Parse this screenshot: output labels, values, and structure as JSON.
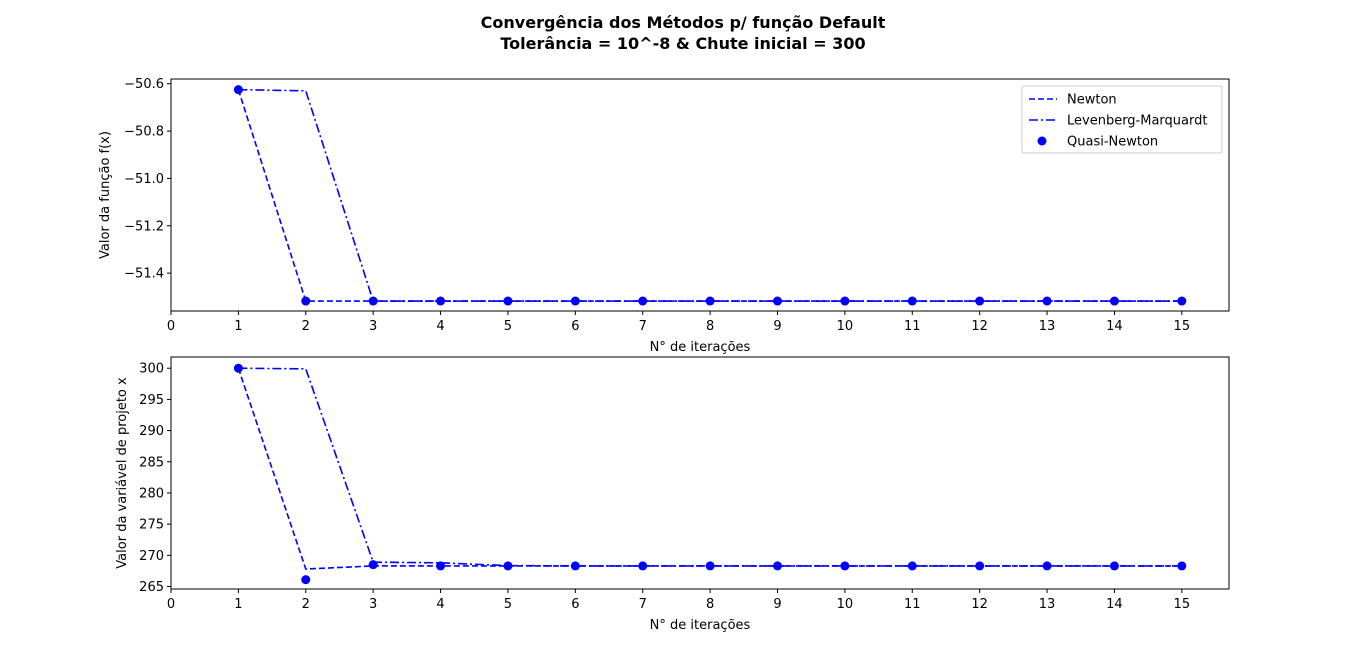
{
  "figure": {
    "title_line1": "Convergência dos Métodos p/ função Default",
    "title_line2": "Tolerância = 10^-8 & Chute inicial = 300"
  },
  "colors": {
    "series": "#0000ff",
    "axes": "#000000",
    "background": "#ffffff"
  },
  "chart_data": [
    {
      "type": "line",
      "xlabel": "N° de iterações",
      "ylabel": "Valor da função f(x)",
      "xlim": [
        0,
        15.7
      ],
      "ylim": [
        -51.56,
        -50.58
      ],
      "xticks": [
        0,
        1,
        2,
        3,
        4,
        5,
        6,
        7,
        8,
        9,
        10,
        11,
        12,
        13,
        14,
        15
      ],
      "xtick_labels": [
        "0",
        "1",
        "2",
        "3",
        "4",
        "5",
        "6",
        "7",
        "8",
        "9",
        "10",
        "11",
        "12",
        "13",
        "14",
        "15"
      ],
      "yticks": [
        -51.4,
        -51.2,
        -51.0,
        -50.8,
        -50.6
      ],
      "ytick_labels": [
        "−51.4",
        "−51.2",
        "−51.0",
        "−50.8",
        "−50.6"
      ],
      "grid": false,
      "legend_position": "top-right",
      "series": [
        {
          "name": "Newton",
          "style": "dashed",
          "x": [
            1,
            2,
            3,
            4,
            5,
            6,
            7,
            8,
            9,
            10,
            11,
            12,
            13,
            14,
            15
          ],
          "y": [
            -50.625,
            -51.518,
            -51.518,
            -51.518,
            -51.518,
            -51.518,
            -51.518,
            -51.518,
            -51.518,
            -51.518,
            -51.518,
            -51.518,
            -51.518,
            -51.518,
            -51.518
          ]
        },
        {
          "name": "Levenberg-Marquardt",
          "style": "dashdot",
          "x": [
            1,
            2,
            3,
            4,
            5,
            6,
            7,
            8,
            9,
            10,
            11,
            12,
            13,
            14,
            15
          ],
          "y": [
            -50.625,
            -50.63,
            -51.518,
            -51.518,
            -51.518,
            -51.518,
            -51.518,
            -51.518,
            -51.518,
            -51.518,
            -51.518,
            -51.518,
            -51.518,
            -51.518,
            -51.518
          ]
        },
        {
          "name": "Quasi-Newton",
          "style": "markers",
          "x": [
            1,
            2,
            3,
            4,
            5,
            6,
            7,
            8,
            9,
            10,
            11,
            12,
            13,
            14,
            15
          ],
          "y": [
            -50.625,
            -51.518,
            -51.518,
            -51.518,
            -51.518,
            -51.518,
            -51.518,
            -51.518,
            -51.518,
            -51.518,
            -51.518,
            -51.518,
            -51.518,
            -51.518,
            -51.518
          ]
        }
      ]
    },
    {
      "type": "line",
      "xlabel": "N° de iterações",
      "ylabel": "Valor da variável de projeto x",
      "xlim": [
        0,
        15.7
      ],
      "ylim": [
        264.6,
        301.8
      ],
      "xticks": [
        0,
        1,
        2,
        3,
        4,
        5,
        6,
        7,
        8,
        9,
        10,
        11,
        12,
        13,
        14,
        15
      ],
      "xtick_labels": [
        "0",
        "1",
        "2",
        "3",
        "4",
        "5",
        "6",
        "7",
        "8",
        "9",
        "10",
        "11",
        "12",
        "13",
        "14",
        "15"
      ],
      "yticks": [
        265,
        270,
        275,
        280,
        285,
        290,
        295,
        300
      ],
      "ytick_labels": [
        "265",
        "270",
        "275",
        "280",
        "285",
        "290",
        "295",
        "300"
      ],
      "grid": false,
      "series": [
        {
          "name": "Newton",
          "style": "dashed",
          "x": [
            1,
            2,
            3,
            4,
            5,
            6,
            7,
            8,
            9,
            10,
            11,
            12,
            13,
            14,
            15
          ],
          "y": [
            300,
            267.8,
            268.3,
            268.3,
            268.3,
            268.3,
            268.3,
            268.3,
            268.3,
            268.3,
            268.3,
            268.3,
            268.3,
            268.3,
            268.3
          ]
        },
        {
          "name": "Levenberg-Marquardt",
          "style": "dashdot",
          "x": [
            1,
            2,
            3,
            4,
            5,
            6,
            7,
            8,
            9,
            10,
            11,
            12,
            13,
            14,
            15
          ],
          "y": [
            300,
            299.9,
            268.9,
            268.8,
            268.35,
            268.3,
            268.3,
            268.3,
            268.3,
            268.3,
            268.3,
            268.3,
            268.3,
            268.3,
            268.3
          ]
        },
        {
          "name": "Quasi-Newton",
          "style": "markers",
          "x": [
            1,
            2,
            3,
            4,
            5,
            6,
            7,
            8,
            9,
            10,
            11,
            12,
            13,
            14,
            15
          ],
          "y": [
            300,
            266.1,
            268.5,
            268.3,
            268.3,
            268.3,
            268.3,
            268.3,
            268.3,
            268.3,
            268.3,
            268.3,
            268.3,
            268.3,
            268.3
          ]
        }
      ]
    }
  ]
}
